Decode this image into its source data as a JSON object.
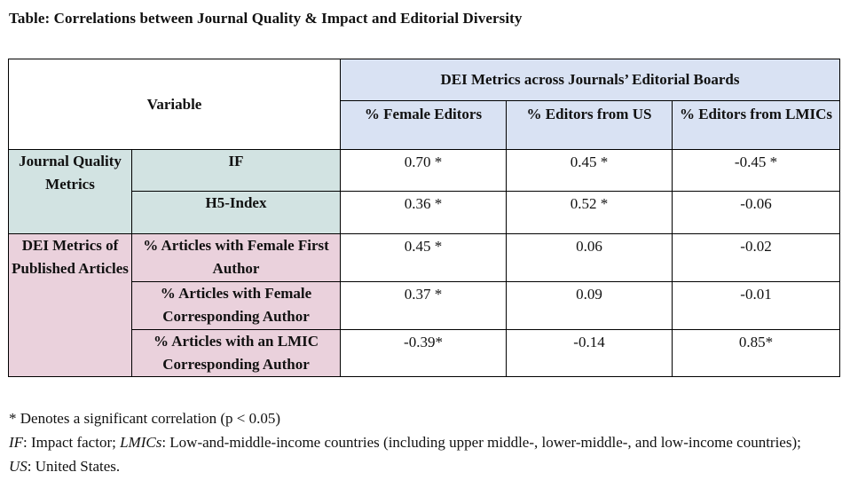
{
  "title": "Table: Correlations between Journal Quality & Impact and Editorial Diversity",
  "table": {
    "variable_header": "Variable",
    "group_header": "DEI Metrics across Journals’ Editorial Boards",
    "columns": [
      "% Female Editors",
      "% Editors from US",
      "% Editors from LMICs"
    ],
    "groups": [
      {
        "label": "Journal Quality Metrics",
        "rows": [
          {
            "variable": "IF",
            "values": [
              "0.70 *",
              "0.45 *",
              "-0.45 *"
            ]
          },
          {
            "variable": "H5-Index",
            "values": [
              "0.36 *",
              "0.52 *",
              "-0.06"
            ]
          }
        ]
      },
      {
        "label": "DEI Metrics of Published Articles",
        "rows": [
          {
            "variable": "% Articles with Female First Author",
            "values": [
              "0.45 *",
              "0.06",
              "-0.02"
            ]
          },
          {
            "variable": "% Articles with Female Corresponding Author",
            "values": [
              "0.37 *",
              "0.09",
              "-0.01"
            ]
          },
          {
            "variable": "% Articles with an LMIC Corresponding Author",
            "values": [
              "-0.39*",
              "-0.14",
              "0.85*"
            ]
          }
        ]
      }
    ]
  },
  "notes": {
    "significance": "* Denotes a significant correlation (p < 0.05)",
    "abbr_if": "IF",
    "abbr_if_def": ": Impact factor; ",
    "abbr_lmic": "LMICs",
    "abbr_lmic_def": ": Low-and-middle-income countries (including upper middle-, lower-middle-, and low-income countries); ",
    "abbr_us": "US",
    "abbr_us_def": ": United States."
  },
  "colors": {
    "header_blue": "#d9e2f3",
    "quality_teal": "#d2e3e2",
    "dei_pink": "#ead1dc"
  }
}
